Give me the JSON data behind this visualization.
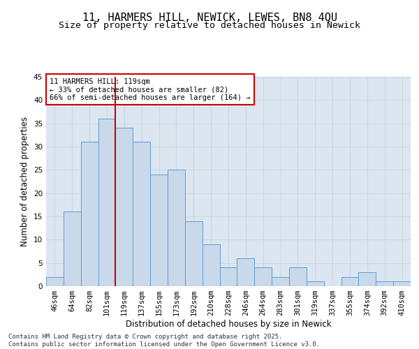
{
  "title": "11, HARMERS HILL, NEWICK, LEWES, BN8 4QU",
  "subtitle": "Size of property relative to detached houses in Newick",
  "xlabel": "Distribution of detached houses by size in Newick",
  "ylabel": "Number of detached properties",
  "categories": [
    "46sqm",
    "64sqm",
    "82sqm",
    "101sqm",
    "119sqm",
    "137sqm",
    "155sqm",
    "173sqm",
    "192sqm",
    "210sqm",
    "228sqm",
    "246sqm",
    "264sqm",
    "283sqm",
    "301sqm",
    "319sqm",
    "337sqm",
    "355sqm",
    "374sqm",
    "392sqm",
    "410sqm"
  ],
  "values": [
    2,
    16,
    31,
    36,
    34,
    31,
    24,
    25,
    14,
    9,
    4,
    6,
    4,
    2,
    4,
    1,
    0,
    2,
    3,
    1,
    1
  ],
  "bar_color": "#c9d9ea",
  "bar_edge_color": "#5b9bd5",
  "property_line_index": 4,
  "property_line_color": "#cc0000",
  "annotation_text": "11 HARMERS HILL: 119sqm\n← 33% of detached houses are smaller (82)\n66% of semi-detached houses are larger (164) →",
  "annotation_box_color": "#cc0000",
  "ylim": [
    0,
    45
  ],
  "yticks": [
    0,
    5,
    10,
    15,
    20,
    25,
    30,
    35,
    40,
    45
  ],
  "grid_color": "#c8d8e8",
  "background_color": "#dce6f0",
  "footer_text": "Contains HM Land Registry data © Crown copyright and database right 2025.\nContains public sector information licensed under the Open Government Licence v3.0.",
  "title_fontsize": 11,
  "subtitle_fontsize": 9.5,
  "axis_label_fontsize": 8.5,
  "tick_fontsize": 7.5,
  "annotation_fontsize": 7.5,
  "footer_fontsize": 6.5
}
